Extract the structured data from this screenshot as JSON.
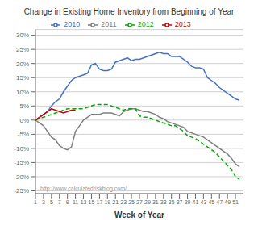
{
  "chart_data": {
    "type": "line",
    "title": "Change in Existing Home Inventory from Beginning of Year",
    "xlabel": "Week of Year",
    "annotations": [
      "http://www.calculatedriskblog.com/"
    ],
    "x": [
      1,
      2,
      3,
      4,
      5,
      6,
      7,
      8,
      9,
      10,
      11,
      12,
      13,
      14,
      15,
      16,
      17,
      18,
      19,
      20,
      21,
      22,
      23,
      24,
      25,
      26,
      27,
      28,
      29,
      30,
      31,
      32,
      33,
      34,
      35,
      36,
      37,
      38,
      39,
      40,
      41,
      42,
      43,
      44,
      45,
      46,
      47,
      48,
      49,
      50,
      51,
      52
    ],
    "series": [
      {
        "name": "2010",
        "color": "#4472c4",
        "line_style": "solid",
        "values": [
          0.0,
          0.01,
          0.02,
          0.03,
          0.05,
          0.065,
          0.075,
          0.1,
          0.12,
          0.14,
          0.15,
          0.155,
          0.16,
          0.165,
          0.195,
          0.2,
          0.18,
          0.175,
          0.175,
          0.18,
          0.205,
          0.21,
          0.215,
          0.22,
          0.21,
          0.215,
          0.215,
          0.22,
          0.225,
          0.23,
          0.235,
          0.24,
          0.235,
          0.235,
          0.225,
          0.225,
          0.225,
          0.215,
          0.205,
          0.19,
          0.185,
          0.185,
          0.18,
          0.15,
          0.14,
          0.13,
          0.115,
          0.105,
          0.095,
          0.085,
          0.075,
          0.07
        ]
      },
      {
        "name": "2011",
        "color": "#808080",
        "line_style": "solid",
        "values": [
          0.0,
          -0.01,
          -0.02,
          -0.04,
          -0.06,
          -0.07,
          -0.09,
          -0.1,
          -0.105,
          -0.095,
          -0.04,
          -0.02,
          0.0,
          0.01,
          0.02,
          0.02,
          0.02,
          0.025,
          0.025,
          0.025,
          0.02,
          0.015,
          0.03,
          0.035,
          0.04,
          0.04,
          0.035,
          0.03,
          0.03,
          0.025,
          0.02,
          0.01,
          0.005,
          -0.005,
          -0.01,
          -0.015,
          -0.02,
          -0.025,
          -0.04,
          -0.045,
          -0.05,
          -0.055,
          -0.06,
          -0.07,
          -0.08,
          -0.09,
          -0.1,
          -0.11,
          -0.12,
          -0.135,
          -0.155,
          -0.165
        ]
      },
      {
        "name": "2012",
        "color": "#00aa00",
        "line_style": "dashed",
        "values": [
          0.0,
          0.005,
          0.01,
          0.015,
          0.02,
          0.025,
          0.03,
          0.035,
          0.04,
          0.04,
          0.04,
          0.04,
          0.04,
          0.045,
          0.05,
          0.055,
          0.055,
          0.055,
          0.055,
          0.05,
          0.045,
          0.04,
          0.035,
          0.04,
          0.04,
          0.04,
          0.015,
          0.01,
          0.01,
          0.005,
          0.0,
          -0.005,
          -0.01,
          -0.015,
          -0.02,
          -0.02,
          -0.03,
          -0.04,
          -0.055,
          -0.06,
          -0.065,
          -0.075,
          -0.085,
          -0.095,
          -0.105,
          -0.115,
          -0.13,
          -0.145,
          -0.16,
          -0.175,
          -0.2,
          -0.21
        ]
      },
      {
        "name": "2013",
        "color": "#cc0000",
        "line_style": "solid",
        "values": [
          0.0,
          0.01,
          0.02,
          0.03,
          0.04,
          0.035,
          0.03,
          0.025,
          0.03,
          0.035,
          0.035,
          null,
          null,
          null,
          null,
          null,
          null,
          null,
          null,
          null,
          null,
          null,
          null,
          null,
          null,
          null,
          null,
          null,
          null,
          null,
          null,
          null,
          null,
          null,
          null,
          null,
          null,
          null,
          null,
          null,
          null,
          null,
          null,
          null,
          null,
          null,
          null,
          null,
          null,
          null,
          null,
          null
        ]
      }
    ],
    "xlim": [
      1,
      53
    ],
    "xticks": [
      1,
      3,
      5,
      7,
      9,
      11,
      13,
      15,
      17,
      19,
      21,
      23,
      25,
      27,
      29,
      31,
      33,
      35,
      37,
      39,
      41,
      43,
      45,
      47,
      49,
      51
    ],
    "ylim": [
      -0.26,
      0.32
    ],
    "yticks": [
      {
        "value": -0.25,
        "label": "-25%"
      },
      {
        "value": -0.2,
        "label": "-20%"
      },
      {
        "value": -0.15,
        "label": "-15%"
      },
      {
        "value": -0.1,
        "label": "-10%"
      },
      {
        "value": -0.05,
        "label": "-5%"
      },
      {
        "value": 0.0,
        "label": "0%"
      },
      {
        "value": 0.05,
        "label": "5%"
      },
      {
        "value": 0.1,
        "label": "10%"
      },
      {
        "value": 0.15,
        "label": "15%"
      },
      {
        "value": 0.2,
        "label": "20%"
      },
      {
        "value": 0.25,
        "label": "25%"
      },
      {
        "value": 0.3,
        "label": "30%"
      }
    ],
    "grid": "y",
    "legend": "top"
  }
}
